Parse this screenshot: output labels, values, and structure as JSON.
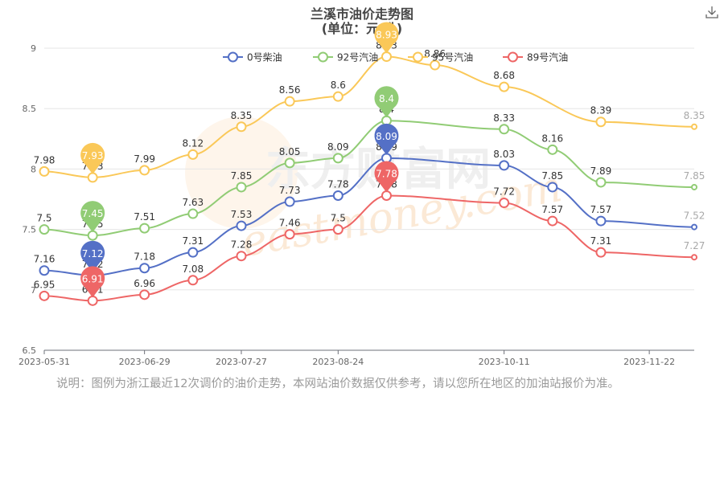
{
  "header": {
    "title_line1": "兰溪市油价走势图",
    "title_line2": "(单位：元/升)"
  },
  "icons": {
    "download": "download-icon"
  },
  "watermark": {
    "cn": "东方财富网",
    "en": "eastmoney.com"
  },
  "note": "说明：图例为浙江最近12次调价的油价走势，本网站油价数据仅供参考，请以您所在地区的加油站报价为准。",
  "chart_data": {
    "type": "line",
    "title": "兰溪市油价走势图",
    "subtitle": "(单位：元/升)",
    "x": [
      "2023-05-31",
      "2023-06-14",
      "2023-06-29",
      "2023-07-13",
      "2023-07-27",
      "2023-08-10",
      "2023-08-24",
      "2023-09-07",
      "2023-09-21",
      "2023-10-11",
      "2023-10-25",
      "2023-11-08",
      "2023-11-22",
      "2023-12-05"
    ],
    "x_tick_labels": [
      "2023-05-31",
      "2023-06-29",
      "2023-07-27",
      "2023-08-24",
      "2023-10-11",
      "2023-11-22"
    ],
    "ylim": [
      6.5,
      9
    ],
    "y_ticks": [
      "6.5",
      "7",
      "7.5",
      "8",
      "8.5",
      "9"
    ],
    "grid": true,
    "legend_position": "top",
    "smooth": true,
    "series": [
      {
        "name": "0号柴油",
        "color": "#5470c6",
        "x": [
          "2023-05-31",
          "2023-06-14",
          "2023-06-29",
          "2023-07-13",
          "2023-07-27",
          "2023-08-10",
          "2023-08-24",
          "2023-09-07",
          "2023-10-11",
          "2023-10-25",
          "2023-11-08",
          "2023-12-05"
        ],
        "values": [
          7.16,
          7.12,
          7.18,
          7.31,
          7.53,
          7.73,
          7.78,
          8.09,
          8.03,
          7.85,
          7.57,
          7.52
        ]
      },
      {
        "name": "92号汽油",
        "color": "#91cc75",
        "x": [
          "2023-05-31",
          "2023-06-14",
          "2023-06-29",
          "2023-07-13",
          "2023-07-27",
          "2023-08-10",
          "2023-08-24",
          "2023-09-07",
          "2023-10-11",
          "2023-10-25",
          "2023-11-08",
          "2023-12-05"
        ],
        "values": [
          7.5,
          7.45,
          7.51,
          7.63,
          7.85,
          8.05,
          8.09,
          8.4,
          8.33,
          8.16,
          7.89,
          7.85
        ]
      },
      {
        "name": "95号汽油",
        "color": "#fac858",
        "x": [
          "2023-05-31",
          "2023-06-14",
          "2023-06-29",
          "2023-07-13",
          "2023-07-27",
          "2023-08-10",
          "2023-08-24",
          "2023-09-07",
          "2023-09-21",
          "2023-10-11",
          "2023-11-08",
          "2023-12-05"
        ],
        "values": [
          7.98,
          7.93,
          7.99,
          8.12,
          8.35,
          8.56,
          8.6,
          8.93,
          8.86,
          8.68,
          8.39,
          8.35
        ]
      },
      {
        "name": "89号汽油",
        "color": "#ee6666",
        "x": [
          "2023-05-31",
          "2023-06-14",
          "2023-06-29",
          "2023-07-13",
          "2023-07-27",
          "2023-08-10",
          "2023-08-24",
          "2023-09-07",
          "2023-10-11",
          "2023-10-25",
          "2023-11-08",
          "2023-12-05"
        ],
        "values": [
          6.95,
          6.91,
          6.96,
          7.08,
          7.28,
          7.46,
          7.5,
          7.78,
          7.72,
          7.57,
          7.31,
          7.27
        ]
      }
    ],
    "markers": {
      "min": [
        {
          "series": "0号柴油",
          "x": "2023-06-14",
          "value": 7.12
        },
        {
          "series": "92号汽油",
          "x": "2023-06-14",
          "value": 7.45
        },
        {
          "series": "95号汽油",
          "x": "2023-06-14",
          "value": 7.93
        },
        {
          "series": "89号汽油",
          "x": "2023-06-14",
          "value": 6.91
        }
      ],
      "max": [
        {
          "series": "0号柴油",
          "x": "2023-09-07",
          "value": 8.09
        },
        {
          "series": "92号汽油",
          "x": "2023-09-07",
          "value": 8.4
        },
        {
          "series": "95号汽油",
          "x": "2023-09-07",
          "value": 8.93
        },
        {
          "series": "89号汽油",
          "x": "2023-09-07",
          "value": 7.78
        }
      ]
    }
  }
}
